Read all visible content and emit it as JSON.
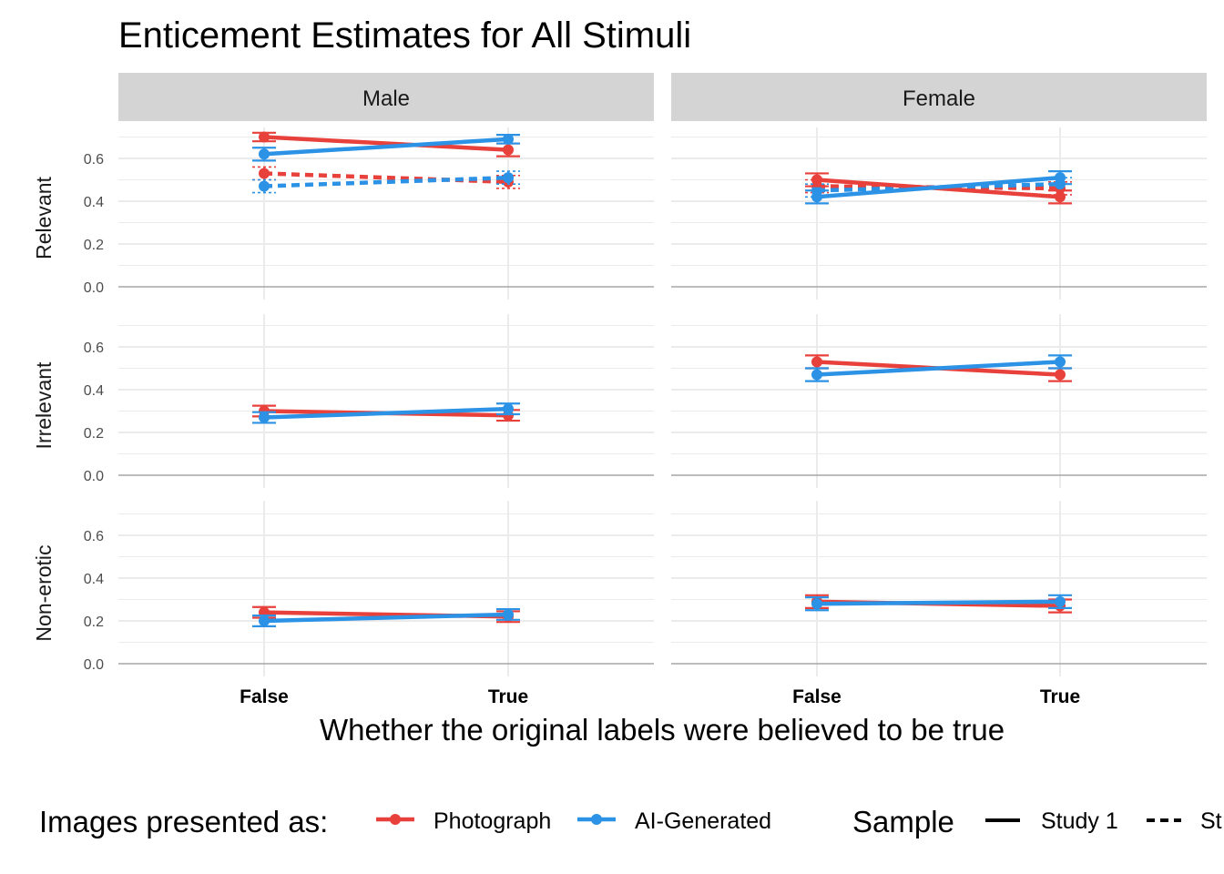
{
  "chart_data": {
    "type": "line",
    "title": "Enticement Estimates for All Stimuli",
    "xlabel": "Whether the original labels were believed to be true",
    "categories": [
      "False",
      "True"
    ],
    "ylim": [
      0,
      0.7
    ],
    "yticks": [
      "0.0",
      "0.2",
      "0.4",
      "0.6"
    ],
    "grid": true,
    "facet_columns": [
      "Male",
      "Female"
    ],
    "facet_rows": [
      "Relevant",
      "Irrelevant",
      "Non-erotic"
    ],
    "legend": {
      "position": "bottom",
      "color_title": "Images presented as:",
      "color_items": [
        {
          "label": "Photograph",
          "color": "#e8413c"
        },
        {
          "label": "AI-Generated",
          "color": "#2c92e6"
        }
      ],
      "linetype_title": "Sample",
      "linetype_items": [
        {
          "label": "Study 1",
          "dash": "solid"
        },
        {
          "label": "St",
          "dash": "dashed"
        }
      ]
    },
    "panels": [
      {
        "column": "Male",
        "row": "Relevant",
        "series": [
          {
            "color_item": 0,
            "linetype_item": 0,
            "values": [
              0.7,
              0.64
            ],
            "err": [
              0.02,
              0.03
            ]
          },
          {
            "color_item": 1,
            "linetype_item": 0,
            "values": [
              0.62,
              0.69
            ],
            "err": [
              0.03,
              0.02
            ]
          },
          {
            "color_item": 0,
            "linetype_item": 1,
            "values": [
              0.53,
              0.49
            ],
            "err": [
              0.03,
              0.03
            ]
          },
          {
            "color_item": 1,
            "linetype_item": 1,
            "values": [
              0.47,
              0.51
            ],
            "err": [
              0.03,
              0.03
            ]
          }
        ]
      },
      {
        "column": "Female",
        "row": "Relevant",
        "series": [
          {
            "color_item": 0,
            "linetype_item": 0,
            "values": [
              0.5,
              0.42
            ],
            "err": [
              0.03,
              0.03
            ]
          },
          {
            "color_item": 1,
            "linetype_item": 0,
            "values": [
              0.42,
              0.51
            ],
            "err": [
              0.03,
              0.03
            ]
          },
          {
            "color_item": 0,
            "linetype_item": 1,
            "values": [
              0.47,
              0.46
            ],
            "err": [
              0.03,
              0.03
            ]
          },
          {
            "color_item": 1,
            "linetype_item": 1,
            "values": [
              0.45,
              0.48
            ],
            "err": [
              0.03,
              0.03
            ]
          }
        ]
      },
      {
        "column": "Male",
        "row": "Irrelevant",
        "series": [
          {
            "color_item": 0,
            "linetype_item": 0,
            "values": [
              0.3,
              0.28
            ],
            "err": [
              0.025,
              0.025
            ]
          },
          {
            "color_item": 1,
            "linetype_item": 0,
            "values": [
              0.27,
              0.31
            ],
            "err": [
              0.025,
              0.025
            ]
          }
        ]
      },
      {
        "column": "Female",
        "row": "Irrelevant",
        "series": [
          {
            "color_item": 0,
            "linetype_item": 0,
            "values": [
              0.53,
              0.47
            ],
            "err": [
              0.03,
              0.03
            ]
          },
          {
            "color_item": 1,
            "linetype_item": 0,
            "values": [
              0.47,
              0.53
            ],
            "err": [
              0.03,
              0.03
            ]
          }
        ]
      },
      {
        "column": "Male",
        "row": "Non-erotic",
        "series": [
          {
            "color_item": 0,
            "linetype_item": 0,
            "values": [
              0.24,
              0.22
            ],
            "err": [
              0.025,
              0.025
            ]
          },
          {
            "color_item": 1,
            "linetype_item": 0,
            "values": [
              0.2,
              0.23
            ],
            "err": [
              0.025,
              0.025
            ]
          }
        ]
      },
      {
        "column": "Female",
        "row": "Non-erotic",
        "series": [
          {
            "color_item": 0,
            "linetype_item": 0,
            "values": [
              0.29,
              0.27
            ],
            "err": [
              0.03,
              0.03
            ]
          },
          {
            "color_item": 1,
            "linetype_item": 0,
            "values": [
              0.28,
              0.29
            ],
            "err": [
              0.03,
              0.03
            ]
          }
        ]
      }
    ]
  }
}
